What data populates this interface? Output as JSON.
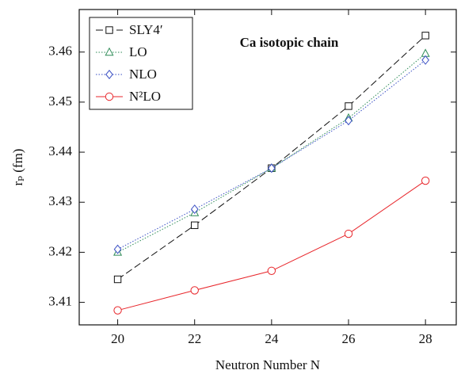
{
  "chart_data": {
    "type": "line",
    "annotation": "Ca isotopic chain",
    "xlabel": "Neutron Number N",
    "ylabel": "rₚ (fm)",
    "x": [
      20,
      22,
      24,
      26,
      28
    ],
    "series": [
      {
        "name": "SLY4′",
        "color": "#111111",
        "line_style": "dashed",
        "marker": "square",
        "values": [
          3.4146,
          3.4254,
          3.4368,
          3.4492,
          3.4633
        ]
      },
      {
        "name": "LO",
        "color": "#2e8b57",
        "line_style": "dotted",
        "marker": "triangle",
        "values": [
          3.42,
          3.4279,
          3.4368,
          3.4468,
          3.4597
        ]
      },
      {
        "name": "NLO",
        "color": "#3a4fc4",
        "line_style": "dotted",
        "marker": "diamond",
        "values": [
          3.4206,
          3.4286,
          3.4368,
          3.4463,
          3.4584
        ]
      },
      {
        "name": "N²LO",
        "color": "#e8262b",
        "line_style": "solid",
        "marker": "circle",
        "values": [
          3.4084,
          3.4124,
          3.4163,
          3.4237,
          3.4343
        ]
      }
    ],
    "xlim": [
      19,
      28.8
    ],
    "xticks": [
      20,
      22,
      24,
      26,
      28
    ],
    "ylim": [
      3.4055,
      3.4685
    ],
    "yticks": [
      3.41,
      3.42,
      3.43,
      3.44,
      3.45,
      3.46
    ],
    "legend": "upper left"
  }
}
